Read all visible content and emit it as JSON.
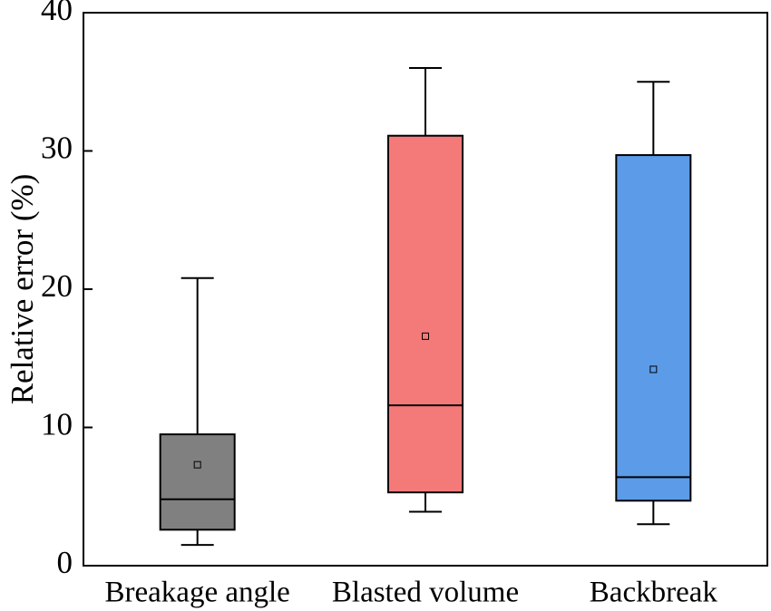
{
  "chart_data": {
    "type": "box",
    "title": "",
    "xlabel": "",
    "ylabel": "Relative error (%)",
    "ylim": [
      0,
      40
    ],
    "yticks": [
      0,
      10,
      20,
      30,
      40
    ],
    "grid": false,
    "categories": [
      "Breakage angle",
      "Blasted volume",
      "Backbreak"
    ],
    "boxes": [
      {
        "name": "Breakage angle",
        "whisker_low": 1.5,
        "q1": 2.6,
        "median": 4.8,
        "q3": 9.5,
        "whisker_high": 20.8,
        "mean": 7.3,
        "color": "#808080"
      },
      {
        "name": "Blasted volume",
        "whisker_low": 3.9,
        "q1": 5.3,
        "median": 11.6,
        "q3": 31.1,
        "whisker_high": 36.0,
        "mean": 16.6,
        "color": "#F47A7A"
      },
      {
        "name": "Backbreak",
        "whisker_low": 3.0,
        "q1": 4.7,
        "median": 6.4,
        "q3": 29.7,
        "whisker_high": 35.0,
        "mean": 14.2,
        "color": "#5B9BE8"
      }
    ]
  }
}
